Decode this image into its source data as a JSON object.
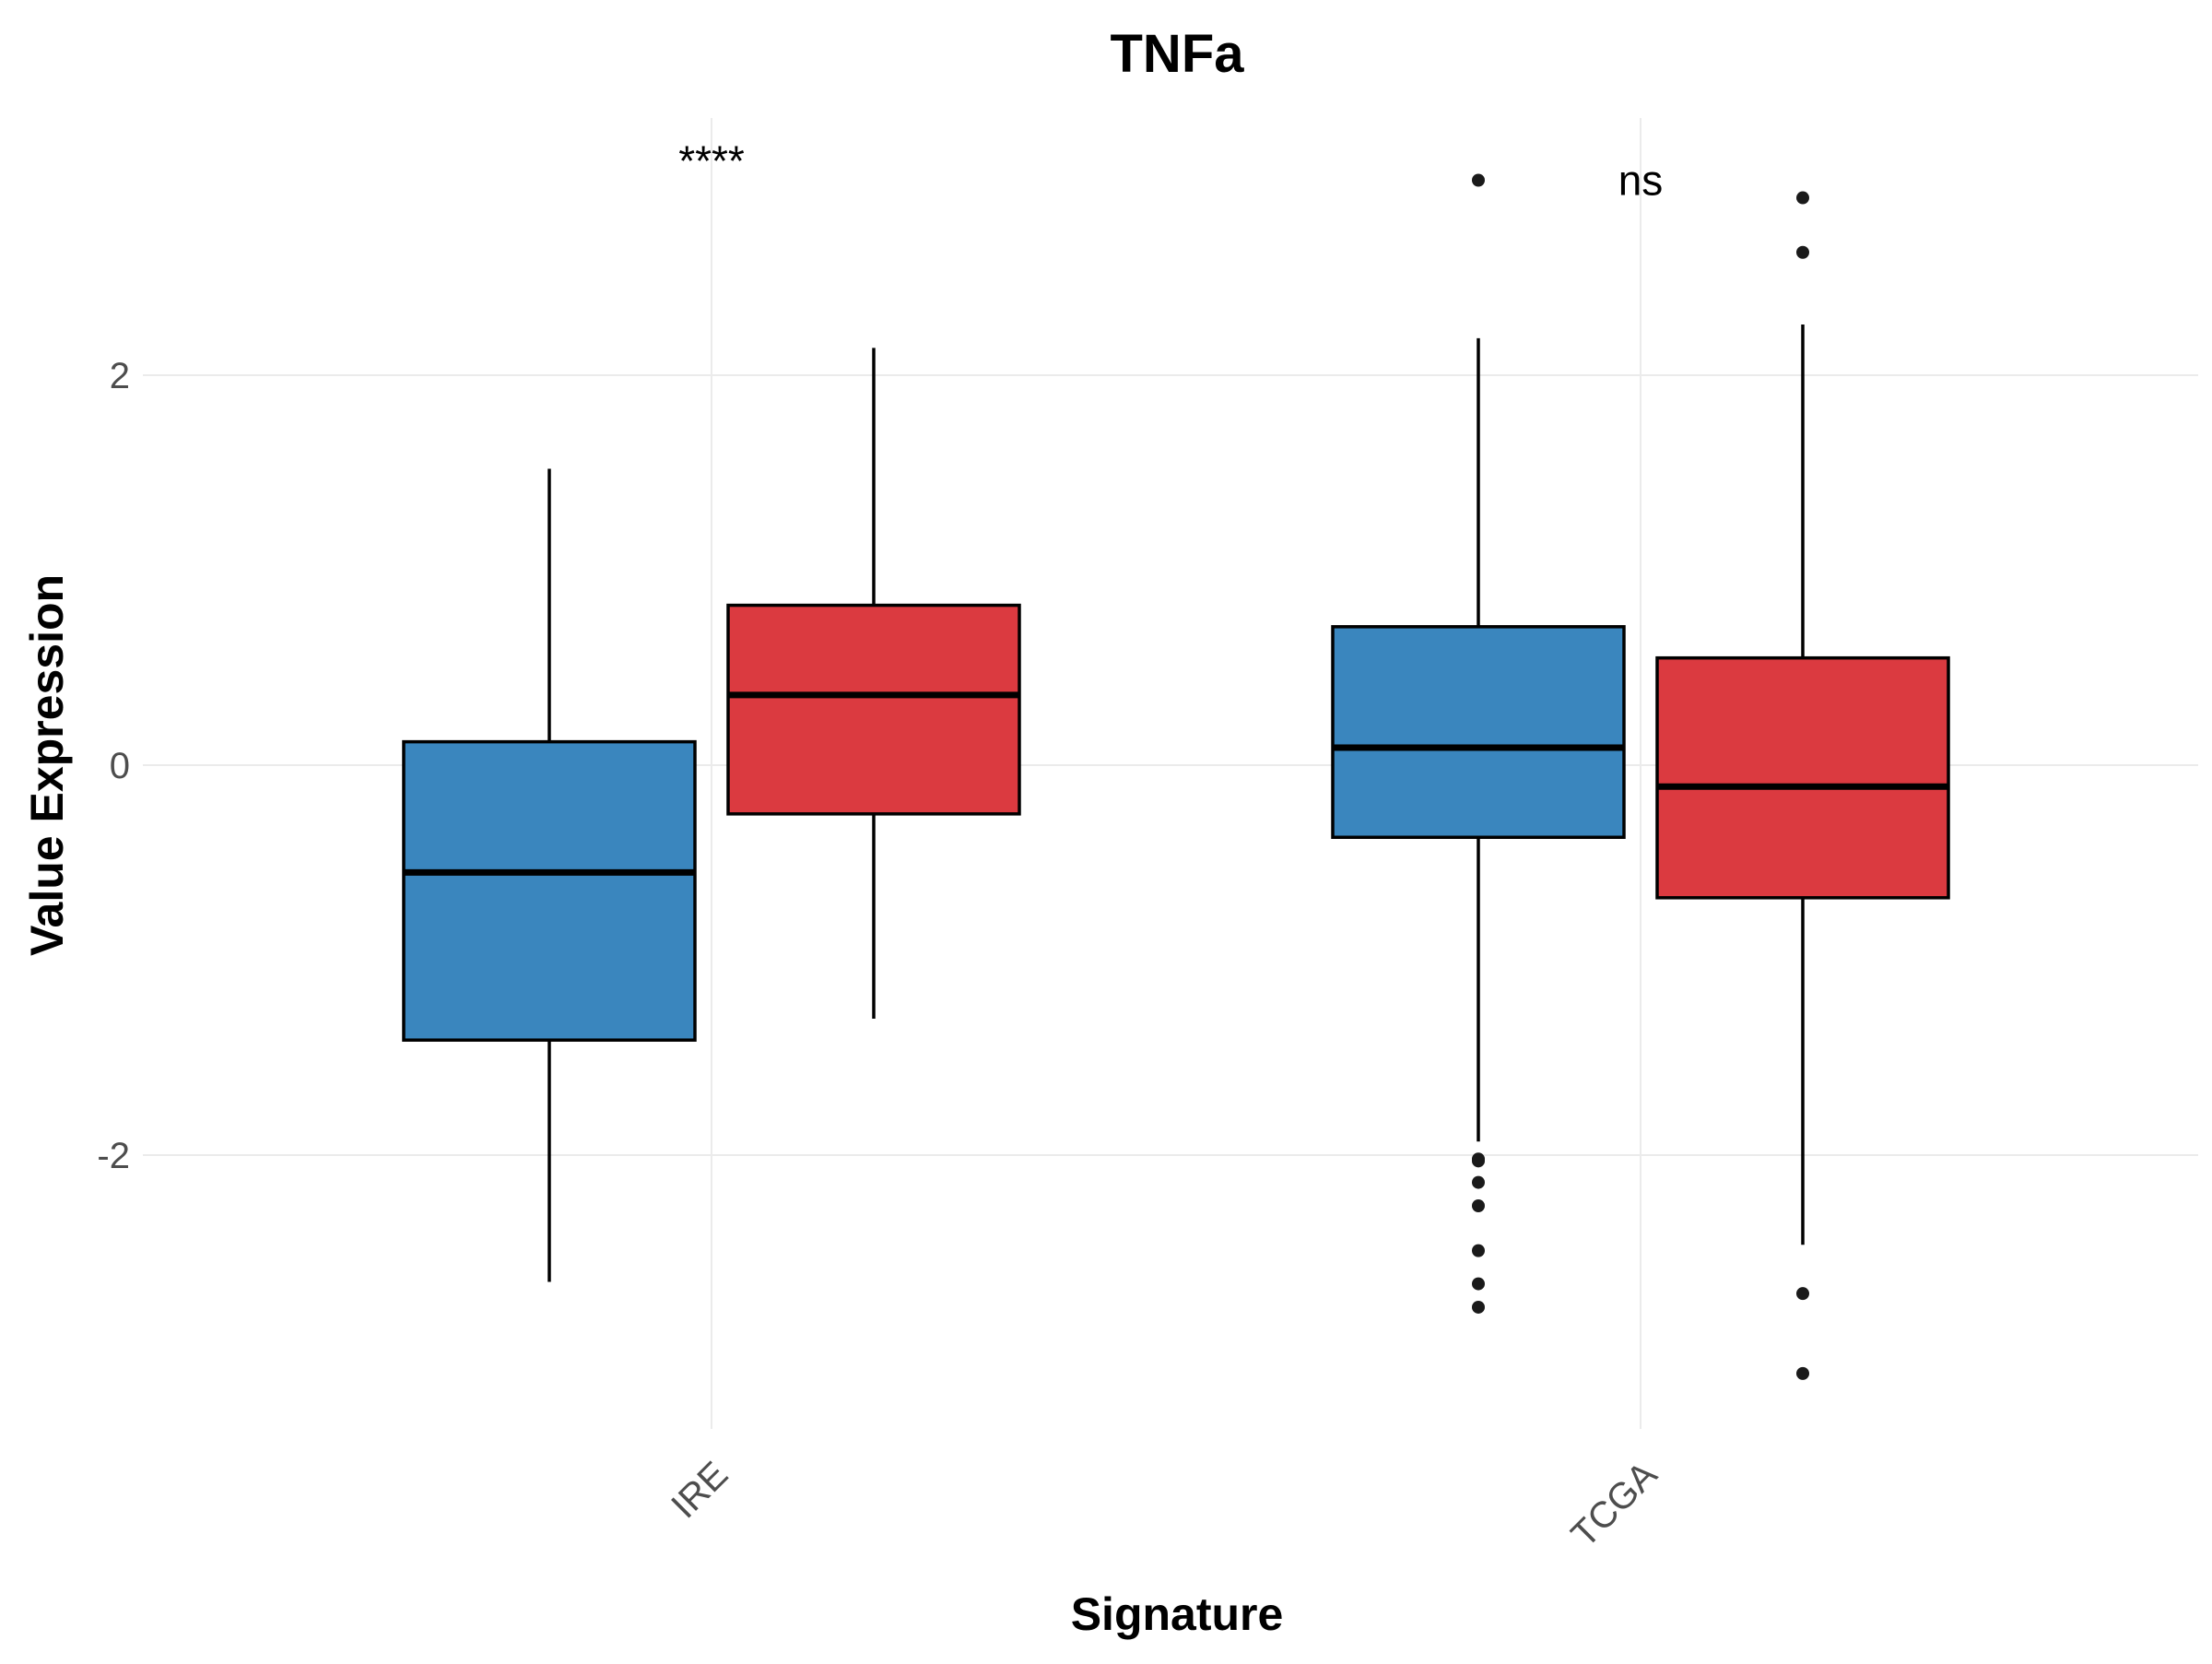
{
  "chart_data": {
    "type": "box",
    "title": "TNFa",
    "xlabel": "Signature",
    "ylabel": "Value Expression",
    "ylim": [
      -3.45,
      3.35
    ],
    "yticks": [
      -2,
      0,
      2
    ],
    "ytick_labels": [
      "-2",
      "0",
      "2"
    ],
    "grid": true,
    "legend": "none",
    "categories": [
      "IRE",
      "TCGA"
    ],
    "series": [
      {
        "color": "#3A86BE",
        "boxes": [
          {
            "category": "IRE",
            "whisker_low": -2.65,
            "q1": -1.41,
            "median": -0.55,
            "q3": 0.12,
            "whisker_high": 1.52,
            "outliers": []
          },
          {
            "category": "TCGA",
            "whisker_low": -1.93,
            "q1": -0.37,
            "median": 0.09,
            "q3": 0.71,
            "whisker_high": 2.19,
            "outliers": [
              3.0,
              -2.02,
              -2.03,
              -2.14,
              -2.26,
              -2.49,
              -2.66,
              -2.78
            ]
          }
        ]
      },
      {
        "color": "#DB3A40",
        "boxes": [
          {
            "category": "IRE",
            "whisker_low": -1.3,
            "q1": -0.25,
            "median": 0.36,
            "q3": 0.82,
            "whisker_high": 2.14,
            "outliers": []
          },
          {
            "category": "TCGA",
            "whisker_low": -2.46,
            "q1": -0.68,
            "median": -0.11,
            "q3": 0.55,
            "whisker_high": 2.26,
            "outliers": [
              2.91,
              2.63,
              -2.71,
              -3.12
            ]
          }
        ]
      }
    ],
    "annotations": [
      {
        "category": "IRE",
        "text": "****",
        "y": 3.1
      },
      {
        "category": "TCGA",
        "text": "ns",
        "y": 3.0
      }
    ]
  }
}
